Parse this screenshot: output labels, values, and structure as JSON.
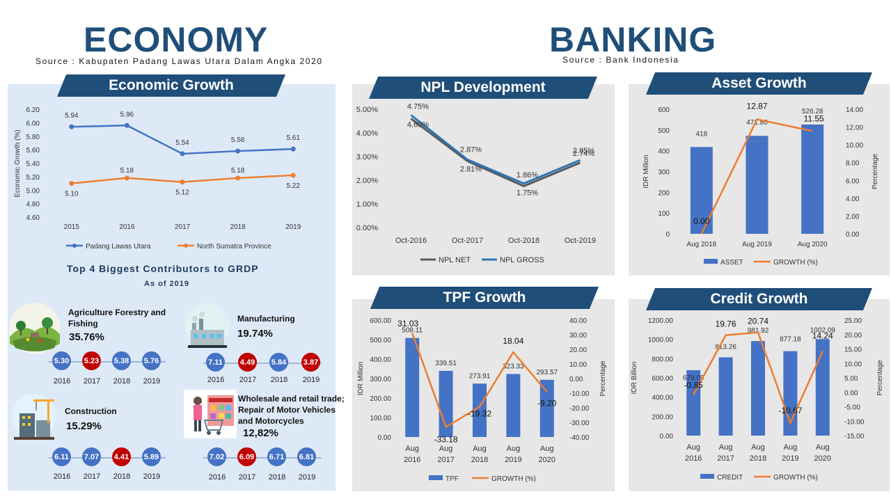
{
  "economy": {
    "title": "ECONOMY",
    "source": "Source : Kabupaten Padang Lawas Utara Dalam Angka 2020"
  },
  "banking": {
    "title": "BANKING",
    "source": "Source : Bank Indonesia"
  },
  "colors": {
    "navy": "#1f4e79",
    "blue": "#4472c4",
    "orange": "#ed7d31",
    "red": "#c00000",
    "gray": "#595959"
  },
  "chart_data": [
    {
      "id": "economic_growth",
      "type": "line",
      "title": "Economic Growth",
      "ylabel": "Economic Growth (%)",
      "categories": [
        "2015",
        "2016",
        "2017",
        "2018",
        "2019"
      ],
      "ylim": [
        4.6,
        6.2
      ],
      "yticks": [
        "6.20",
        "6.00",
        "5.80",
        "5.60",
        "5.40",
        "5.20",
        "5.00",
        "4.80",
        "4.60"
      ],
      "series": [
        {
          "name": "Padang Lawas Utara",
          "values": [
            5.94,
            5.96,
            5.54,
            5.58,
            5.61
          ],
          "labels": [
            "5.94",
            "5.96",
            "5.54",
            "5.58",
            "5.61"
          ]
        },
        {
          "name": "North Sumatra Province",
          "values": [
            5.1,
            5.18,
            5.12,
            5.18,
            5.22
          ],
          "labels": [
            "5.10",
            "5.18",
            "5.12",
            "5.18",
            "5.22"
          ]
        }
      ]
    },
    {
      "id": "npl_development",
      "type": "line",
      "title": "NPL Development",
      "categories": [
        "Oct-2016",
        "Oct-2017",
        "Oct-2018",
        "Oct-2019"
      ],
      "ylim": [
        0,
        5
      ],
      "yticks": [
        "5.00%",
        "4.00%",
        "3.00%",
        "2.00%",
        "1.00%",
        "0.00%"
      ],
      "series": [
        {
          "name": "NPL NET",
          "values": [
            4.6,
            2.81,
            1.75,
            2.74
          ],
          "labels": [
            "4.60%",
            "2.81%",
            "1.75%",
            "2.74%"
          ]
        },
        {
          "name": "NPL GROSS",
          "values": [
            4.75,
            2.87,
            1.86,
            2.85
          ],
          "labels": [
            "4.75%",
            "2.87%",
            "1.86%",
            "2.85%"
          ]
        }
      ]
    },
    {
      "id": "asset_growth",
      "type": "bar",
      "title": "Asset Growth",
      "ylabel": "IDR Million",
      "y2label": "Percentage",
      "categories": [
        "Aug 2018",
        "Aug 2019",
        "Aug 2020"
      ],
      "ylim": [
        0,
        600
      ],
      "y2lim": [
        0,
        14
      ],
      "yticks": [
        "600",
        "500",
        "400",
        "300",
        "200",
        "100",
        "0"
      ],
      "y2ticks": [
        "14.00",
        "12.00",
        "10.00",
        "8.00",
        "6.00",
        "4.00",
        "2.00",
        "0.00"
      ],
      "series": [
        {
          "name": "ASSET",
          "values": [
            418,
            471.8,
            526.28
          ],
          "labels": [
            "418",
            "471.80",
            "526.28"
          ]
        },
        {
          "name": "GROWTH (%)",
          "values": [
            0.0,
            12.87,
            11.55
          ],
          "labels": [
            "0.00",
            "12.87",
            "11.55"
          ]
        }
      ]
    },
    {
      "id": "tpf_growth",
      "type": "bar",
      "title": "TPF Growth",
      "ylabel": "IDR Million",
      "y2label": "Percentage",
      "categories": [
        "Aug 2016",
        "Aug 2017",
        "Aug 2018",
        "Aug 2019",
        "Aug 2020"
      ],
      "ylim": [
        0,
        600
      ],
      "y2lim": [
        -40,
        40
      ],
      "yticks": [
        "600.00",
        "500.00",
        "400.00",
        "300.00",
        "200.00",
        "100.00",
        "0.00"
      ],
      "y2ticks": [
        "40.00",
        "30.00",
        "20.00",
        "10.00",
        "0.00",
        "-10.00",
        "-20.00",
        "-30.00",
        "-40.00"
      ],
      "series": [
        {
          "name": "TPF",
          "values": [
            508.11,
            339.51,
            273.91,
            323.33,
            293.57
          ],
          "labels": [
            "508.11",
            "339.51",
            "273.91",
            "323.33",
            "293.57"
          ]
        },
        {
          "name": "GROWTH (%)",
          "values": [
            31.03,
            -33.18,
            -19.32,
            18.04,
            -9.2
          ],
          "labels": [
            "31.03",
            "-33.18",
            "-19.32",
            "18.04",
            "-9.20"
          ]
        }
      ]
    },
    {
      "id": "credit_growth",
      "type": "bar",
      "title": "Credit Growth",
      "ylabel": "IDR Billion",
      "y2label": "Percentage",
      "categories": [
        "Aug 2016",
        "Aug 2017",
        "Aug 2018",
        "Aug 2019",
        "Aug 2020"
      ],
      "ylim": [
        0,
        1200
      ],
      "y2lim": [
        -15,
        25
      ],
      "yticks": [
        "1200.00",
        "1000.00",
        "800.00",
        "600.00",
        "400.00",
        "200.00",
        "0.00"
      ],
      "y2ticks": [
        "25.00",
        "20.00",
        "15.00",
        "10.00",
        "5.00",
        "0.00",
        "-5.00",
        "-10.00",
        "-15.00"
      ],
      "series": [
        {
          "name": "CREDIT",
          "values": [
            679.09,
            813.26,
            981.92,
            877.18,
            1002.09
          ],
          "labels": [
            "679.09",
            "813.26",
            "981.92",
            "877.18",
            "1002.09"
          ]
        },
        {
          "name": "GROWTH (%)",
          "values": [
            -0.85,
            19.76,
            20.74,
            -10.67,
            14.24
          ],
          "labels": [
            "-0.85",
            "19.76",
            "20.74",
            "-10.67",
            "14.24"
          ]
        }
      ]
    }
  ],
  "contributors": {
    "title": "Top 4 Biggest Contributors to GRDP",
    "subtitle": "As of 2019",
    "sectors": [
      {
        "name": "Agriculture Forestry and Fishing",
        "share": "35.76%",
        "icon": "agriculture-icon",
        "years": [
          "2016",
          "2017",
          "2018",
          "2019"
        ],
        "values": [
          "5.30",
          "5.23",
          "5.38",
          "5.76"
        ],
        "highlight": [
          false,
          true,
          false,
          false
        ]
      },
      {
        "name": "Manufacturing",
        "share": "19.74%",
        "icon": "factory-icon",
        "years": [
          "2016",
          "2017",
          "2018",
          "2019"
        ],
        "values": [
          "7.11",
          "4.49",
          "5.84",
          "3.87"
        ],
        "highlight": [
          false,
          true,
          false,
          true
        ]
      },
      {
        "name": "Construction",
        "share": "15.29%",
        "icon": "construction-icon",
        "years": [
          "2016",
          "2017",
          "2018",
          "2019"
        ],
        "values": [
          "6.11",
          "7.07",
          "4.41",
          "5.89"
        ],
        "highlight": [
          false,
          false,
          true,
          false
        ]
      },
      {
        "name": "Wholesale and retail trade; Repair of Motor Vehicles and Motorcycles",
        "share": "12,82%",
        "icon": "shopping-icon",
        "years": [
          "2016",
          "2017",
          "2018",
          "2019"
        ],
        "values": [
          "7.02",
          "6.09",
          "6.71",
          "6.81"
        ],
        "highlight": [
          false,
          true,
          false,
          false
        ]
      }
    ]
  }
}
